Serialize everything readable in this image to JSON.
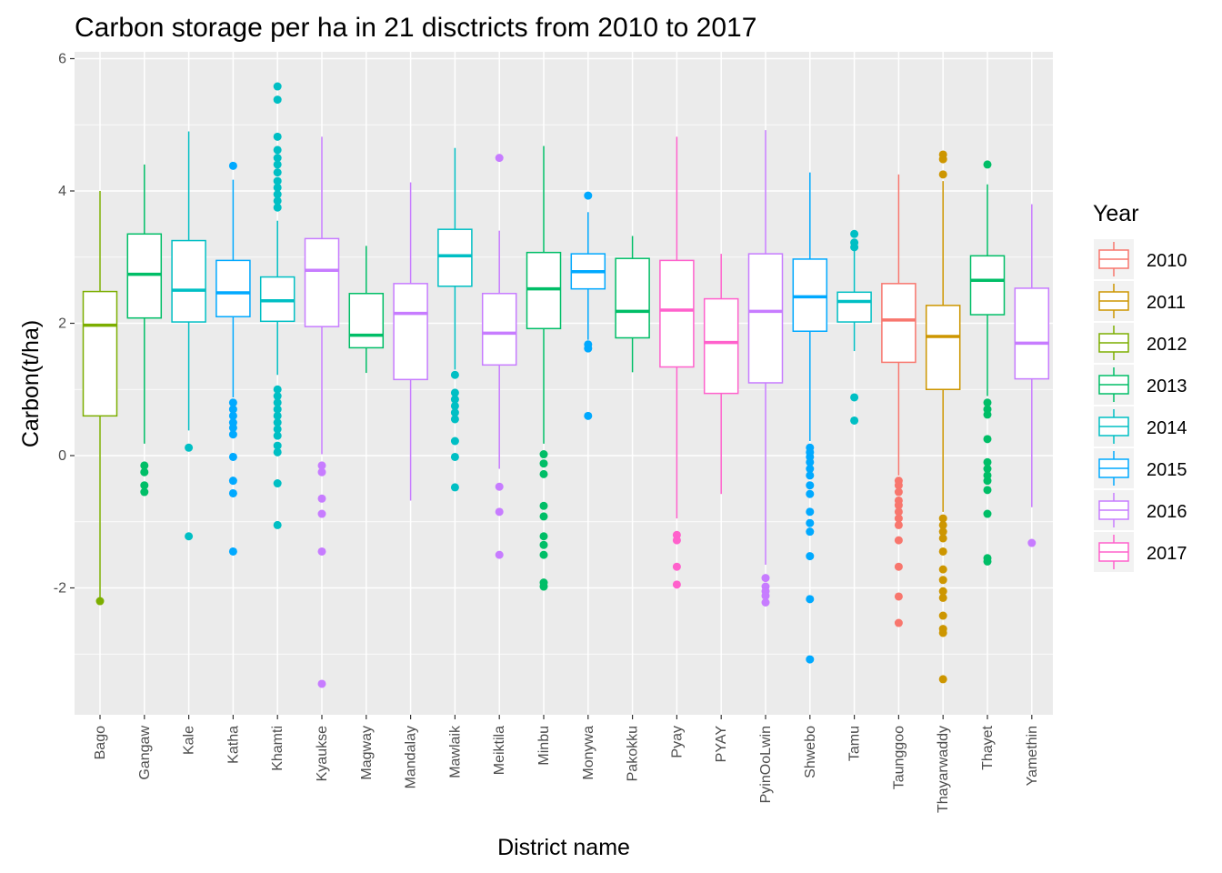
{
  "chart_data": {
    "type": "boxplot",
    "title": "Carbon storage per ha in 21 disctricts from 2010 to 2017",
    "xlabel": "District name",
    "ylabel": "Carbon(t/ha)",
    "ylim": [
      -3.95,
      6.0
    ],
    "yticks": [
      6,
      4,
      2,
      0,
      -2
    ],
    "ytick_labels": [
      "6",
      "4",
      "2",
      "0",
      "-2"
    ],
    "grid": true,
    "legend": {
      "title": "Year",
      "placement": "right",
      "entries": [
        {
          "label": "2010",
          "color": "#F8766D"
        },
        {
          "label": "2011",
          "color": "#CD9600"
        },
        {
          "label": "2012",
          "color": "#7CAE00"
        },
        {
          "label": "2013",
          "color": "#00BE67"
        },
        {
          "label": "2014",
          "color": "#00BFC4"
        },
        {
          "label": "2015",
          "color": "#00A9FF"
        },
        {
          "label": "2016",
          "color": "#C77CFF"
        },
        {
          "label": "2017",
          "color": "#FF61CC"
        }
      ]
    },
    "colors": {
      "panel_background": "#EBEBEB",
      "grid": "#FFFFFF",
      "tick_text": "#4D4D4D"
    },
    "categories": [
      "Bago",
      "Gangaw",
      "Kale",
      "Katha",
      "Khamti",
      "Kyaukse",
      "Magway",
      "Mandalay",
      "Mawlaik",
      "Meiktila",
      "Minbu",
      "Monywa",
      "Pakokku",
      "Pyay",
      "PYAY",
      "PyinOoLwin",
      "Shwebo",
      "Tamu",
      "Taunggoo",
      "Thayarwaddy",
      "Thayet",
      "Yamethin"
    ],
    "boxes": [
      {
        "district": "Bago",
        "year": "2012",
        "whisker_low": -2.2,
        "q1": 0.6,
        "median": 1.97,
        "q3": 2.48,
        "whisker_high": 4.0,
        "outliers": [
          -2.2
        ]
      },
      {
        "district": "Gangaw",
        "year": "2013",
        "whisker_low": 0.18,
        "q1": 2.08,
        "median": 2.74,
        "q3": 3.35,
        "whisker_high": 4.4,
        "outliers": [
          -0.15,
          -0.25,
          -0.45,
          -0.55
        ]
      },
      {
        "district": "Kale",
        "year": "2014",
        "whisker_low": 0.38,
        "q1": 2.02,
        "median": 2.5,
        "q3": 3.25,
        "whisker_high": 4.9,
        "outliers": [
          0.12,
          -1.22
        ]
      },
      {
        "district": "Katha",
        "year": "2015",
        "whisker_low": 0.88,
        "q1": 2.1,
        "median": 2.46,
        "q3": 2.95,
        "whisker_high": 4.17,
        "outliers": [
          4.38,
          0.8,
          0.7,
          0.6,
          0.5,
          0.42,
          0.32,
          -0.02,
          -0.38,
          -0.57,
          -1.45
        ]
      },
      {
        "district": "Khamti",
        "year": "2014",
        "whisker_low": 1.22,
        "q1": 2.03,
        "median": 2.34,
        "q3": 2.7,
        "whisker_high": 3.55,
        "outliers": [
          5.58,
          5.38,
          4.82,
          4.62,
          4.5,
          4.4,
          4.28,
          4.15,
          4.05,
          3.95,
          3.85,
          3.75,
          1.0,
          0.9,
          0.8,
          0.7,
          0.6,
          0.5,
          0.4,
          0.3,
          0.15,
          0.05,
          -0.42,
          -1.05
        ]
      },
      {
        "district": "Kyaukse",
        "year": "2016",
        "whisker_low": 0.02,
        "q1": 1.95,
        "median": 2.8,
        "q3": 3.28,
        "whisker_high": 4.82,
        "outliers": [
          -0.15,
          -0.25,
          -0.65,
          -0.88,
          -1.45,
          -3.45
        ]
      },
      {
        "district": "Magway",
        "year": "2013",
        "whisker_low": 1.25,
        "q1": 1.63,
        "median": 1.82,
        "q3": 2.45,
        "whisker_high": 3.17,
        "outliers": []
      },
      {
        "district": "Mandalay",
        "year": "2016",
        "whisker_low": -0.68,
        "q1": 1.15,
        "median": 2.15,
        "q3": 2.6,
        "whisker_high": 4.13,
        "outliers": []
      },
      {
        "district": "Mawlaik",
        "year": "2014",
        "whisker_low": 1.3,
        "q1": 2.56,
        "median": 3.02,
        "q3": 3.42,
        "whisker_high": 4.65,
        "outliers": [
          1.22,
          0.95,
          0.85,
          0.75,
          0.65,
          0.55,
          0.22,
          -0.02,
          -0.48
        ]
      },
      {
        "district": "Meiktila",
        "year": "2016",
        "whisker_low": -0.2,
        "q1": 1.37,
        "median": 1.85,
        "q3": 2.45,
        "whisker_high": 3.4,
        "outliers": [
          4.5,
          -0.47,
          -0.85,
          -1.5
        ]
      },
      {
        "district": "Minbu",
        "year": "2013",
        "whisker_low": 0.18,
        "q1": 1.92,
        "median": 2.52,
        "q3": 3.07,
        "whisker_high": 4.68,
        "outliers": [
          0.02,
          -0.12,
          -0.28,
          -0.76,
          -0.92,
          -1.22,
          -1.35,
          -1.5,
          -1.92,
          -1.98
        ]
      },
      {
        "district": "Monywa",
        "year": "2015",
        "whisker_low": 1.75,
        "q1": 2.52,
        "median": 2.78,
        "q3": 3.05,
        "whisker_high": 3.68,
        "outliers": [
          3.93,
          1.68,
          1.62,
          0.6
        ]
      },
      {
        "district": "Pakokku",
        "year": "2013",
        "whisker_low": 1.26,
        "q1": 1.78,
        "median": 2.18,
        "q3": 2.98,
        "whisker_high": 3.32,
        "outliers": []
      },
      {
        "district": "Pyay",
        "year": "2017",
        "whisker_low": -0.95,
        "q1": 1.34,
        "median": 2.2,
        "q3": 2.95,
        "whisker_high": 4.82,
        "outliers": [
          -1.2,
          -1.28,
          -1.68,
          -1.95
        ]
      },
      {
        "district": "PYAY",
        "year": "2017",
        "whisker_low": -0.58,
        "q1": 0.94,
        "median": 1.71,
        "q3": 2.37,
        "whisker_high": 3.05,
        "outliers": []
      },
      {
        "district": "PyinOoLwin",
        "year": "2016",
        "whisker_low": -1.65,
        "q1": 1.1,
        "median": 2.18,
        "q3": 3.05,
        "whisker_high": 4.92,
        "outliers": [
          -1.85,
          -1.98,
          -2.05,
          -2.12,
          -2.22
        ]
      },
      {
        "district": "Shwebo",
        "year": "2015",
        "whisker_low": 0.22,
        "q1": 1.88,
        "median": 2.4,
        "q3": 2.97,
        "whisker_high": 4.28,
        "outliers": [
          0.12,
          0.05,
          -0.02,
          -0.1,
          -0.2,
          -0.3,
          -0.45,
          -0.58,
          -0.85,
          -1.02,
          -1.15,
          -1.52,
          -2.17,
          -3.08
        ]
      },
      {
        "district": "Tamu",
        "year": "2014",
        "whisker_low": 1.58,
        "q1": 2.02,
        "median": 2.33,
        "q3": 2.47,
        "whisker_high": 3.1,
        "outliers": [
          3.35,
          3.22,
          3.15,
          0.88,
          0.53
        ]
      },
      {
        "district": "Taunggoo",
        "year": "2010",
        "whisker_low": -0.3,
        "q1": 1.41,
        "median": 2.05,
        "q3": 2.6,
        "whisker_high": 4.25,
        "outliers": [
          -0.38,
          -0.45,
          -0.55,
          -0.68,
          -0.75,
          -0.85,
          -0.95,
          -1.05,
          -1.28,
          -1.68,
          -2.13,
          -2.53
        ]
      },
      {
        "district": "Thayarwaddy",
        "year": "2011",
        "whisker_low": -0.85,
        "q1": 1.0,
        "median": 1.8,
        "q3": 2.27,
        "whisker_high": 4.15,
        "outliers": [
          4.55,
          4.48,
          4.25,
          -0.95,
          -1.05,
          -1.15,
          -1.25,
          -1.45,
          -1.72,
          -1.88,
          -2.05,
          -2.15,
          -2.42,
          -2.62,
          -2.68,
          -3.38
        ]
      },
      {
        "district": "Thayet",
        "year": "2013",
        "whisker_low": 0.9,
        "q1": 2.13,
        "median": 2.65,
        "q3": 3.02,
        "whisker_high": 4.1,
        "outliers": [
          4.4,
          0.8,
          0.7,
          0.62,
          0.25,
          -0.1,
          -0.2,
          -0.3,
          -0.38,
          -0.52,
          -0.88,
          -1.55,
          -1.6
        ]
      },
      {
        "district": "Yamethin",
        "year": "2016",
        "whisker_low": -0.78,
        "q1": 1.16,
        "median": 1.7,
        "q3": 2.53,
        "whisker_high": 3.8,
        "outliers": [
          -1.32
        ]
      }
    ]
  }
}
